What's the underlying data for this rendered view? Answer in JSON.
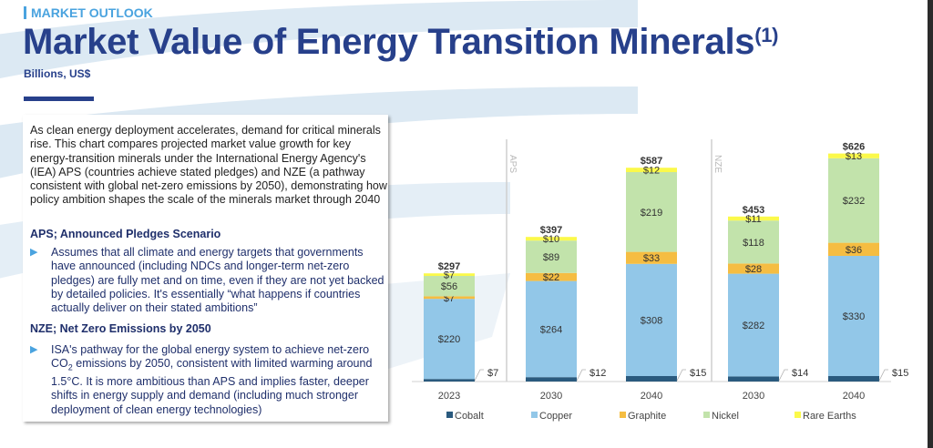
{
  "header": {
    "kicker": "MARKET OUTLOOK",
    "title": "Market Value of Energy Transition Minerals",
    "title_footnote": "(1)",
    "subtitle": "Billions, US$"
  },
  "panel": {
    "intro": "As clean energy deployment accelerates, demand for critical minerals rise. This chart compares projected market value growth for key energy-transition minerals under the International Energy Agency's (IEA) APS (countries achieve stated pledges) and NZE (a pathway consistent with global net-zero emissions by 2050), demonstrating how policy ambition shapes the scale of the minerals market through 2040",
    "aps_heading": "APS; Announced Pledges Scenario",
    "aps_bullet": "Assumes that all climate and energy targets that governments have announced (including NDCs and longer-term net-zero pledges) are fully met and on time, even if they are not yet backed by detailed policies. It's essentially “what happens if countries actually deliver on their stated ambitions”",
    "nze_heading": "NZE; Net Zero Emissions by 2050",
    "nze_bullet_pre": "ISA's pathway for the global energy system to achieve net-zero CO",
    "nze_bullet_sub": "2",
    "nze_bullet_post": " emissions by 2050, consistent with limited warming around 1.5°C. It is more ambitious than APS and implies faster, deeper shifts in energy supply and demand (including much stronger deployment of clean energy technologies)",
    "bullet_icon": "▶"
  },
  "chart_data": {
    "type": "bar",
    "stacked": true,
    "title": "Market Value of Energy Transition Minerals",
    "ylabel": "Billions, US$",
    "xlabel": "",
    "categories": [
      "2023",
      "2030",
      "2040",
      "2030",
      "2040"
    ],
    "groups": [
      {
        "label": "",
        "categories": [
          0
        ]
      },
      {
        "label": "APS",
        "categories": [
          1,
          2
        ]
      },
      {
        "label": "NZE",
        "categories": [
          3,
          4
        ]
      }
    ],
    "series": [
      {
        "name": "Cobalt",
        "color": "#2a5a7e",
        "values": [
          7,
          12,
          15,
          14,
          15
        ]
      },
      {
        "name": "Copper",
        "color": "#92c7e8",
        "values": [
          220,
          264,
          308,
          282,
          330
        ]
      },
      {
        "name": "Graphite",
        "color": "#f5bd42",
        "values": [
          7,
          22,
          33,
          28,
          36
        ]
      },
      {
        "name": "Nickel",
        "color": "#c2e3ab",
        "values": [
          56,
          89,
          219,
          118,
          232
        ]
      },
      {
        "name": "Rare Earths",
        "color": "#fbf94a",
        "values": [
          7,
          10,
          12,
          11,
          13
        ]
      }
    ],
    "totals": [
      297,
      397,
      587,
      453,
      626
    ],
    "value_prefix": "$",
    "legend_position": "bottom",
    "ylim": [
      0,
      660
    ],
    "grid": false
  }
}
